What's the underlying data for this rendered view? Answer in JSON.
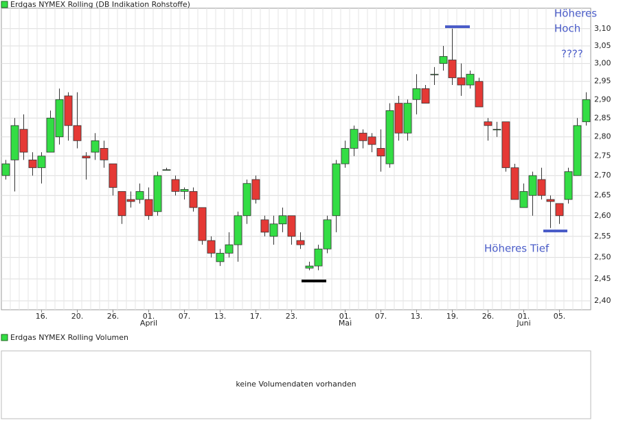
{
  "chart_data": {
    "type": "candlestick",
    "title": "Erdgas NYMEX Rolling (DB Indikation Rohstoffe)",
    "categories": [
      null,
      null,
      null,
      null,
      "16.",
      null,
      null,
      null,
      "20.",
      null,
      null,
      null,
      "26.",
      null,
      null,
      null,
      "01.",
      null,
      null,
      null,
      "07.",
      null,
      null,
      null,
      "13.",
      null,
      null,
      null,
      "17.",
      null,
      null,
      null,
      "23.",
      null,
      null,
      null,
      null,
      null,
      "01.",
      null,
      null,
      null,
      "07.",
      null,
      null,
      null,
      "13.",
      null,
      null,
      null,
      "19.",
      null,
      null,
      null,
      "26.",
      null,
      null,
      null,
      "01.",
      null,
      null,
      null,
      "05.",
      null,
      null,
      null
    ],
    "months": [
      null,
      null,
      null,
      null,
      null,
      null,
      null,
      null,
      null,
      null,
      null,
      null,
      null,
      null,
      null,
      null,
      "April",
      null,
      null,
      null,
      null,
      null,
      null,
      null,
      null,
      null,
      null,
      null,
      null,
      null,
      null,
      null,
      null,
      null,
      null,
      null,
      null,
      null,
      "Mai",
      null,
      null,
      null,
      null,
      null,
      null,
      null,
      null,
      null,
      null,
      null,
      null,
      null,
      null,
      null,
      null,
      null,
      null,
      null,
      "Juni",
      null,
      null,
      null,
      null,
      null,
      null,
      null
    ],
    "series": {
      "open": [
        2.7,
        2.74,
        2.82,
        2.74,
        2.72,
        2.76,
        2.8,
        2.91,
        2.83,
        2.75,
        2.76,
        2.77,
        2.73,
        2.66,
        2.64,
        2.64,
        2.64,
        2.61,
        2.715,
        2.69,
        2.66,
        2.66,
        2.62,
        2.54,
        2.49,
        2.51,
        2.53,
        2.6,
        2.69,
        2.59,
        2.55,
        2.58,
        2.6,
        2.54,
        2.475,
        2.48,
        2.52,
        2.6,
        2.73,
        2.77,
        2.81,
        2.8,
        2.77,
        2.73,
        2.89,
        2.81,
        2.9,
        2.93,
        2.97,
        3.0,
        3.01,
        2.96,
        2.94,
        2.95,
        2.84,
        2.82,
        2.84,
        2.72,
        2.62,
        2.65,
        2.69,
        2.64,
        2.63,
        2.64,
        2.7,
        2.84
      ],
      "high": [
        2.74,
        2.85,
        2.86,
        2.76,
        2.76,
        2.87,
        2.93,
        2.92,
        2.92,
        2.76,
        2.81,
        2.79,
        2.73,
        2.66,
        2.66,
        2.68,
        2.67,
        2.71,
        2.72,
        2.7,
        2.67,
        2.67,
        2.62,
        2.55,
        2.52,
        2.56,
        2.61,
        2.69,
        2.7,
        2.6,
        2.6,
        2.62,
        2.6,
        2.56,
        2.49,
        2.53,
        2.6,
        2.74,
        2.79,
        2.83,
        2.82,
        2.81,
        2.82,
        2.89,
        2.91,
        2.9,
        2.97,
        2.94,
        2.99,
        3.05,
        3.1,
        3.0,
        2.98,
        2.96,
        2.85,
        2.84,
        2.84,
        2.73,
        2.68,
        2.71,
        2.72,
        2.65,
        2.63,
        2.72,
        2.85,
        2.92
      ],
      "low": [
        2.69,
        2.66,
        2.74,
        2.7,
        2.68,
        2.76,
        2.78,
        2.79,
        2.77,
        2.69,
        2.74,
        2.72,
        2.65,
        2.58,
        2.62,
        2.63,
        2.59,
        2.6,
        2.715,
        2.65,
        2.64,
        2.61,
        2.53,
        2.5,
        2.48,
        2.5,
        2.49,
        2.58,
        2.63,
        2.55,
        2.53,
        2.56,
        2.53,
        2.52,
        2.47,
        2.47,
        2.51,
        2.56,
        2.72,
        2.75,
        2.77,
        2.76,
        2.71,
        2.72,
        2.79,
        2.79,
        2.86,
        2.89,
        2.94,
        2.98,
        2.94,
        2.91,
        2.93,
        2.88,
        2.79,
        2.8,
        2.71,
        2.64,
        2.62,
        2.6,
        2.64,
        2.57,
        2.58,
        2.63,
        2.7,
        2.83
      ],
      "close": [
        2.73,
        2.83,
        2.76,
        2.72,
        2.75,
        2.85,
        2.9,
        2.83,
        2.79,
        2.745,
        2.79,
        2.74,
        2.67,
        2.6,
        2.635,
        2.66,
        2.6,
        2.7,
        2.715,
        2.66,
        2.665,
        2.62,
        2.54,
        2.51,
        2.51,
        2.53,
        2.6,
        2.68,
        2.64,
        2.56,
        2.58,
        2.6,
        2.55,
        2.53,
        2.48,
        2.52,
        2.59,
        2.73,
        2.77,
        2.82,
        2.79,
        2.78,
        2.75,
        2.87,
        2.81,
        2.89,
        2.93,
        2.89,
        2.97,
        3.02,
        2.96,
        2.94,
        2.97,
        2.88,
        2.83,
        2.82,
        2.72,
        2.64,
        2.66,
        2.7,
        2.65,
        2.635,
        2.6,
        2.71,
        2.83,
        2.9
      ]
    },
    "up_color": "#33dd44",
    "down_color": "#e53935",
    "ylim": [
      2.38,
      3.16
    ],
    "log_scale": true,
    "grid": true,
    "yticks": [
      {
        "value": 2.4,
        "label": "2,40"
      },
      {
        "value": 2.45,
        "label": "2,45"
      },
      {
        "value": 2.5,
        "label": "2,50"
      },
      {
        "value": 2.55,
        "label": "2,55"
      },
      {
        "value": 2.6,
        "label": "2,60"
      },
      {
        "value": 2.65,
        "label": "2,65"
      },
      {
        "value": 2.7,
        "label": "2,70"
      },
      {
        "value": 2.75,
        "label": "2,75"
      },
      {
        "value": 2.8,
        "label": "2,80"
      },
      {
        "value": 2.85,
        "label": "2,85"
      },
      {
        "value": 2.9,
        "label": "2,90"
      },
      {
        "value": 2.95,
        "label": "2,95"
      },
      {
        "value": 3.0,
        "label": "3,00"
      },
      {
        "value": 3.05,
        "label": "3,05"
      },
      {
        "value": 3.1,
        "label": "3,10"
      }
    ],
    "annotations": [
      "Höheres",
      "Hoch",
      "????",
      "Höheres Tief"
    ],
    "volume_title": "Erdgas NYMEX Rolling Volumen",
    "volume_message": "keine Volumendaten vorhanden"
  }
}
